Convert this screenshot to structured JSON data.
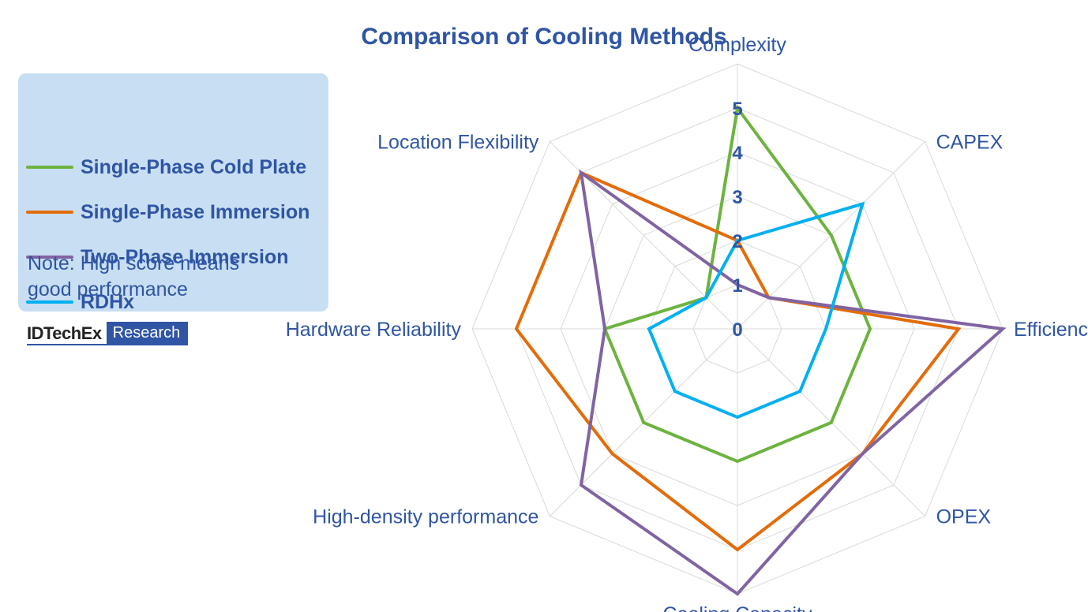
{
  "chart_data": {
    "type": "radar",
    "title": "Comparison of Cooling Methods",
    "axes": [
      "Complexity",
      "CAPEX",
      "Efficiency",
      "OPEX",
      "Cooling Capacity",
      "High-density performance",
      "Hardware Reliability",
      "Location Flexibility"
    ],
    "r_ticks": [
      "0",
      "1",
      "2",
      "3",
      "4",
      "5"
    ],
    "rlim": [
      0,
      5
    ],
    "grid": true,
    "legend_position": "top-left",
    "series": [
      {
        "name": "Single-Phase Cold Plate",
        "color": "#6db33f",
        "values": [
          5,
          3,
          3,
          3,
          3,
          3,
          3,
          1
        ]
      },
      {
        "name": "Single-Phase Immersion",
        "color": "#e36c0a",
        "values": [
          2,
          1,
          5,
          4,
          5,
          4,
          5,
          5
        ]
      },
      {
        "name": "Two-Phase Immersion",
        "color": "#8064a2",
        "values": [
          1,
          1,
          6,
          4,
          6,
          5,
          3,
          5
        ]
      },
      {
        "name": "RDHx",
        "color": "#00b0f0",
        "values": [
          2,
          4,
          2,
          2,
          2,
          2,
          2,
          1
        ]
      }
    ]
  },
  "legend": {
    "note": "Note: High score means good performance"
  },
  "brand": {
    "name": "IDTechEx",
    "tag": "Research"
  }
}
